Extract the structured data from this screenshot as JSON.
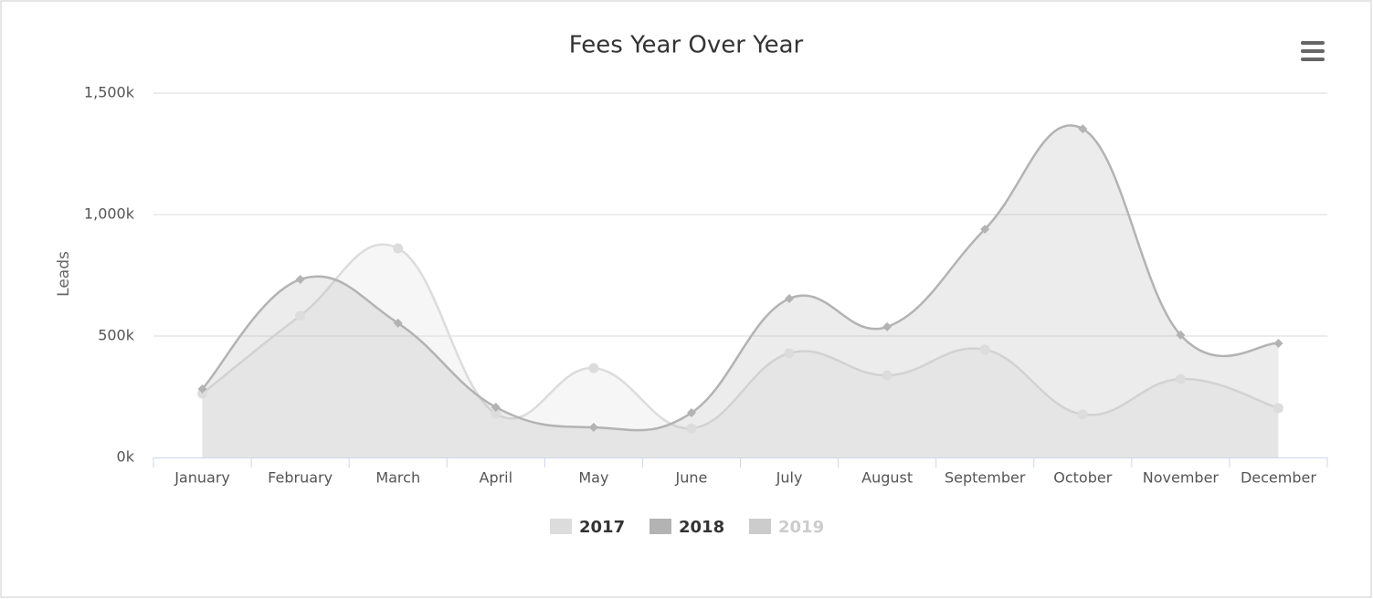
{
  "chart_data": {
    "type": "areaspline",
    "title": "Fees Year Over Year",
    "y_axis_label": "Leads",
    "categories": [
      "January",
      "February",
      "March",
      "April",
      "May",
      "June",
      "July",
      "August",
      "September",
      "October",
      "November",
      "December"
    ],
    "series": [
      {
        "name": "2017",
        "color": "#dcdcdc",
        "marker": "circle",
        "visible": true,
        "values": [
          263000,
          583000,
          861000,
          180000,
          368000,
          120000,
          429000,
          338000,
          444000,
          177000,
          323000,
          203000
        ]
      },
      {
        "name": "2018",
        "color": "#b3b3b3",
        "marker": "diamond",
        "visible": true,
        "values": [
          282000,
          733000,
          553000,
          207000,
          124000,
          184000,
          654000,
          538000,
          940000,
          1353000,
          504000,
          470000
        ]
      },
      {
        "name": "2019",
        "color": "#cccccc",
        "marker": "circle",
        "visible": false,
        "values": [
          null,
          null,
          null,
          null,
          null,
          null,
          null,
          null,
          null,
          null,
          null,
          null
        ]
      }
    ],
    "ylim": [
      0,
      1500000
    ],
    "yticks": [
      {
        "value": 0,
        "label": "0k"
      },
      {
        "value": 500000,
        "label": "500k"
      },
      {
        "value": 1000000,
        "label": "1,000k"
      },
      {
        "value": 1500000,
        "label": "1,500k"
      }
    ],
    "grid": true,
    "legend": "bottom"
  }
}
